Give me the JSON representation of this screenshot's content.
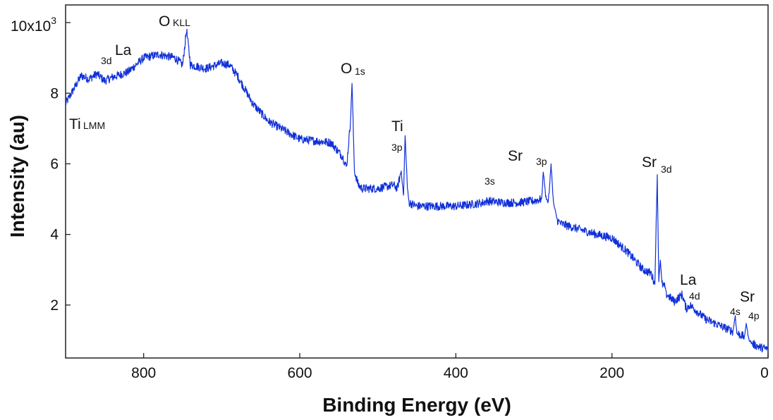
{
  "chart_data": {
    "type": "line",
    "title": "",
    "xlabel": "Binding Energy (eV)",
    "ylabel": "Intensity (au)",
    "xlim": [
      900,
      0
    ],
    "x_reversed": true,
    "ylim": [
      500,
      10500
    ],
    "x_ticks": [
      800,
      600,
      400,
      200,
      0
    ],
    "y_ticks": [
      2000,
      4000,
      6000,
      8000
    ],
    "x_tick_labels": [
      "800",
      "600",
      "400",
      "200",
      "0"
    ],
    "y_tick_labels": [
      "2",
      "4",
      "6",
      "8"
    ],
    "y_top_label": {
      "base": "10x10",
      "sup": "3"
    },
    "grid": false,
    "color": "#1030d8",
    "series": [
      {
        "x": [
          900,
          880,
          870,
          860,
          850,
          840,
          820,
          800,
          780,
          760,
          750,
          745,
          740,
          720,
          700,
          690,
          680,
          660,
          640,
          600,
          560,
          545,
          540,
          535,
          533,
          530,
          525,
          520,
          500,
          480,
          475,
          470,
          467,
          465,
          462,
          460,
          450,
          420,
          400,
          380,
          365,
          360,
          340,
          320,
          300,
          290,
          288,
          285,
          282,
          280,
          278,
          275,
          272,
          270,
          265,
          250,
          220,
          200,
          180,
          160,
          150,
          145,
          142,
          140,
          138,
          136,
          132,
          130,
          120,
          110,
          105,
          100,
          90,
          80,
          60,
          50,
          45,
          42,
          40,
          35,
          30,
          28,
          25,
          22,
          20,
          10,
          0
        ],
        "y": [
          7700,
          8500,
          8400,
          8550,
          8350,
          8450,
          8600,
          9000,
          9100,
          9000,
          8800,
          9800,
          8800,
          8700,
          8850,
          8800,
          8500,
          7700,
          7200,
          6700,
          6600,
          6200,
          5900,
          7200,
          8300,
          5800,
          5400,
          5300,
          5300,
          5400,
          5300,
          5800,
          5100,
          6800,
          5300,
          4900,
          4800,
          4800,
          4800,
          4850,
          4900,
          4950,
          4900,
          4900,
          4950,
          5000,
          5800,
          5100,
          4900,
          5300,
          6000,
          4900,
          4600,
          4400,
          4300,
          4200,
          4000,
          3900,
          3500,
          3000,
          2900,
          2600,
          5700,
          2700,
          3300,
          2600,
          2500,
          2300,
          2100,
          2300,
          1900,
          2000,
          1800,
          1600,
          1400,
          1300,
          1250,
          1700,
          1200,
          1150,
          1100,
          1500,
          1050,
          950,
          900,
          800,
          750
        ]
      }
    ],
    "annotations": [
      {
        "main": "O",
        "sub": "KLL"
      },
      {
        "main": "La",
        "sub": "3d"
      },
      {
        "main": "Ti",
        "sub": "LMM"
      },
      {
        "main": "O",
        "sub": "1s"
      },
      {
        "main": "Ti",
        "sub": "3p"
      },
      {
        "main": "Sr",
        "sub": "3s"
      },
      {
        "main": "",
        "sub": "3p"
      },
      {
        "main": "Sr",
        "sub": "3d"
      },
      {
        "main": "La",
        "sub": "4d"
      },
      {
        "main": "Sr",
        "sub": "4p"
      },
      {
        "main": "",
        "sub": "4s"
      }
    ]
  }
}
